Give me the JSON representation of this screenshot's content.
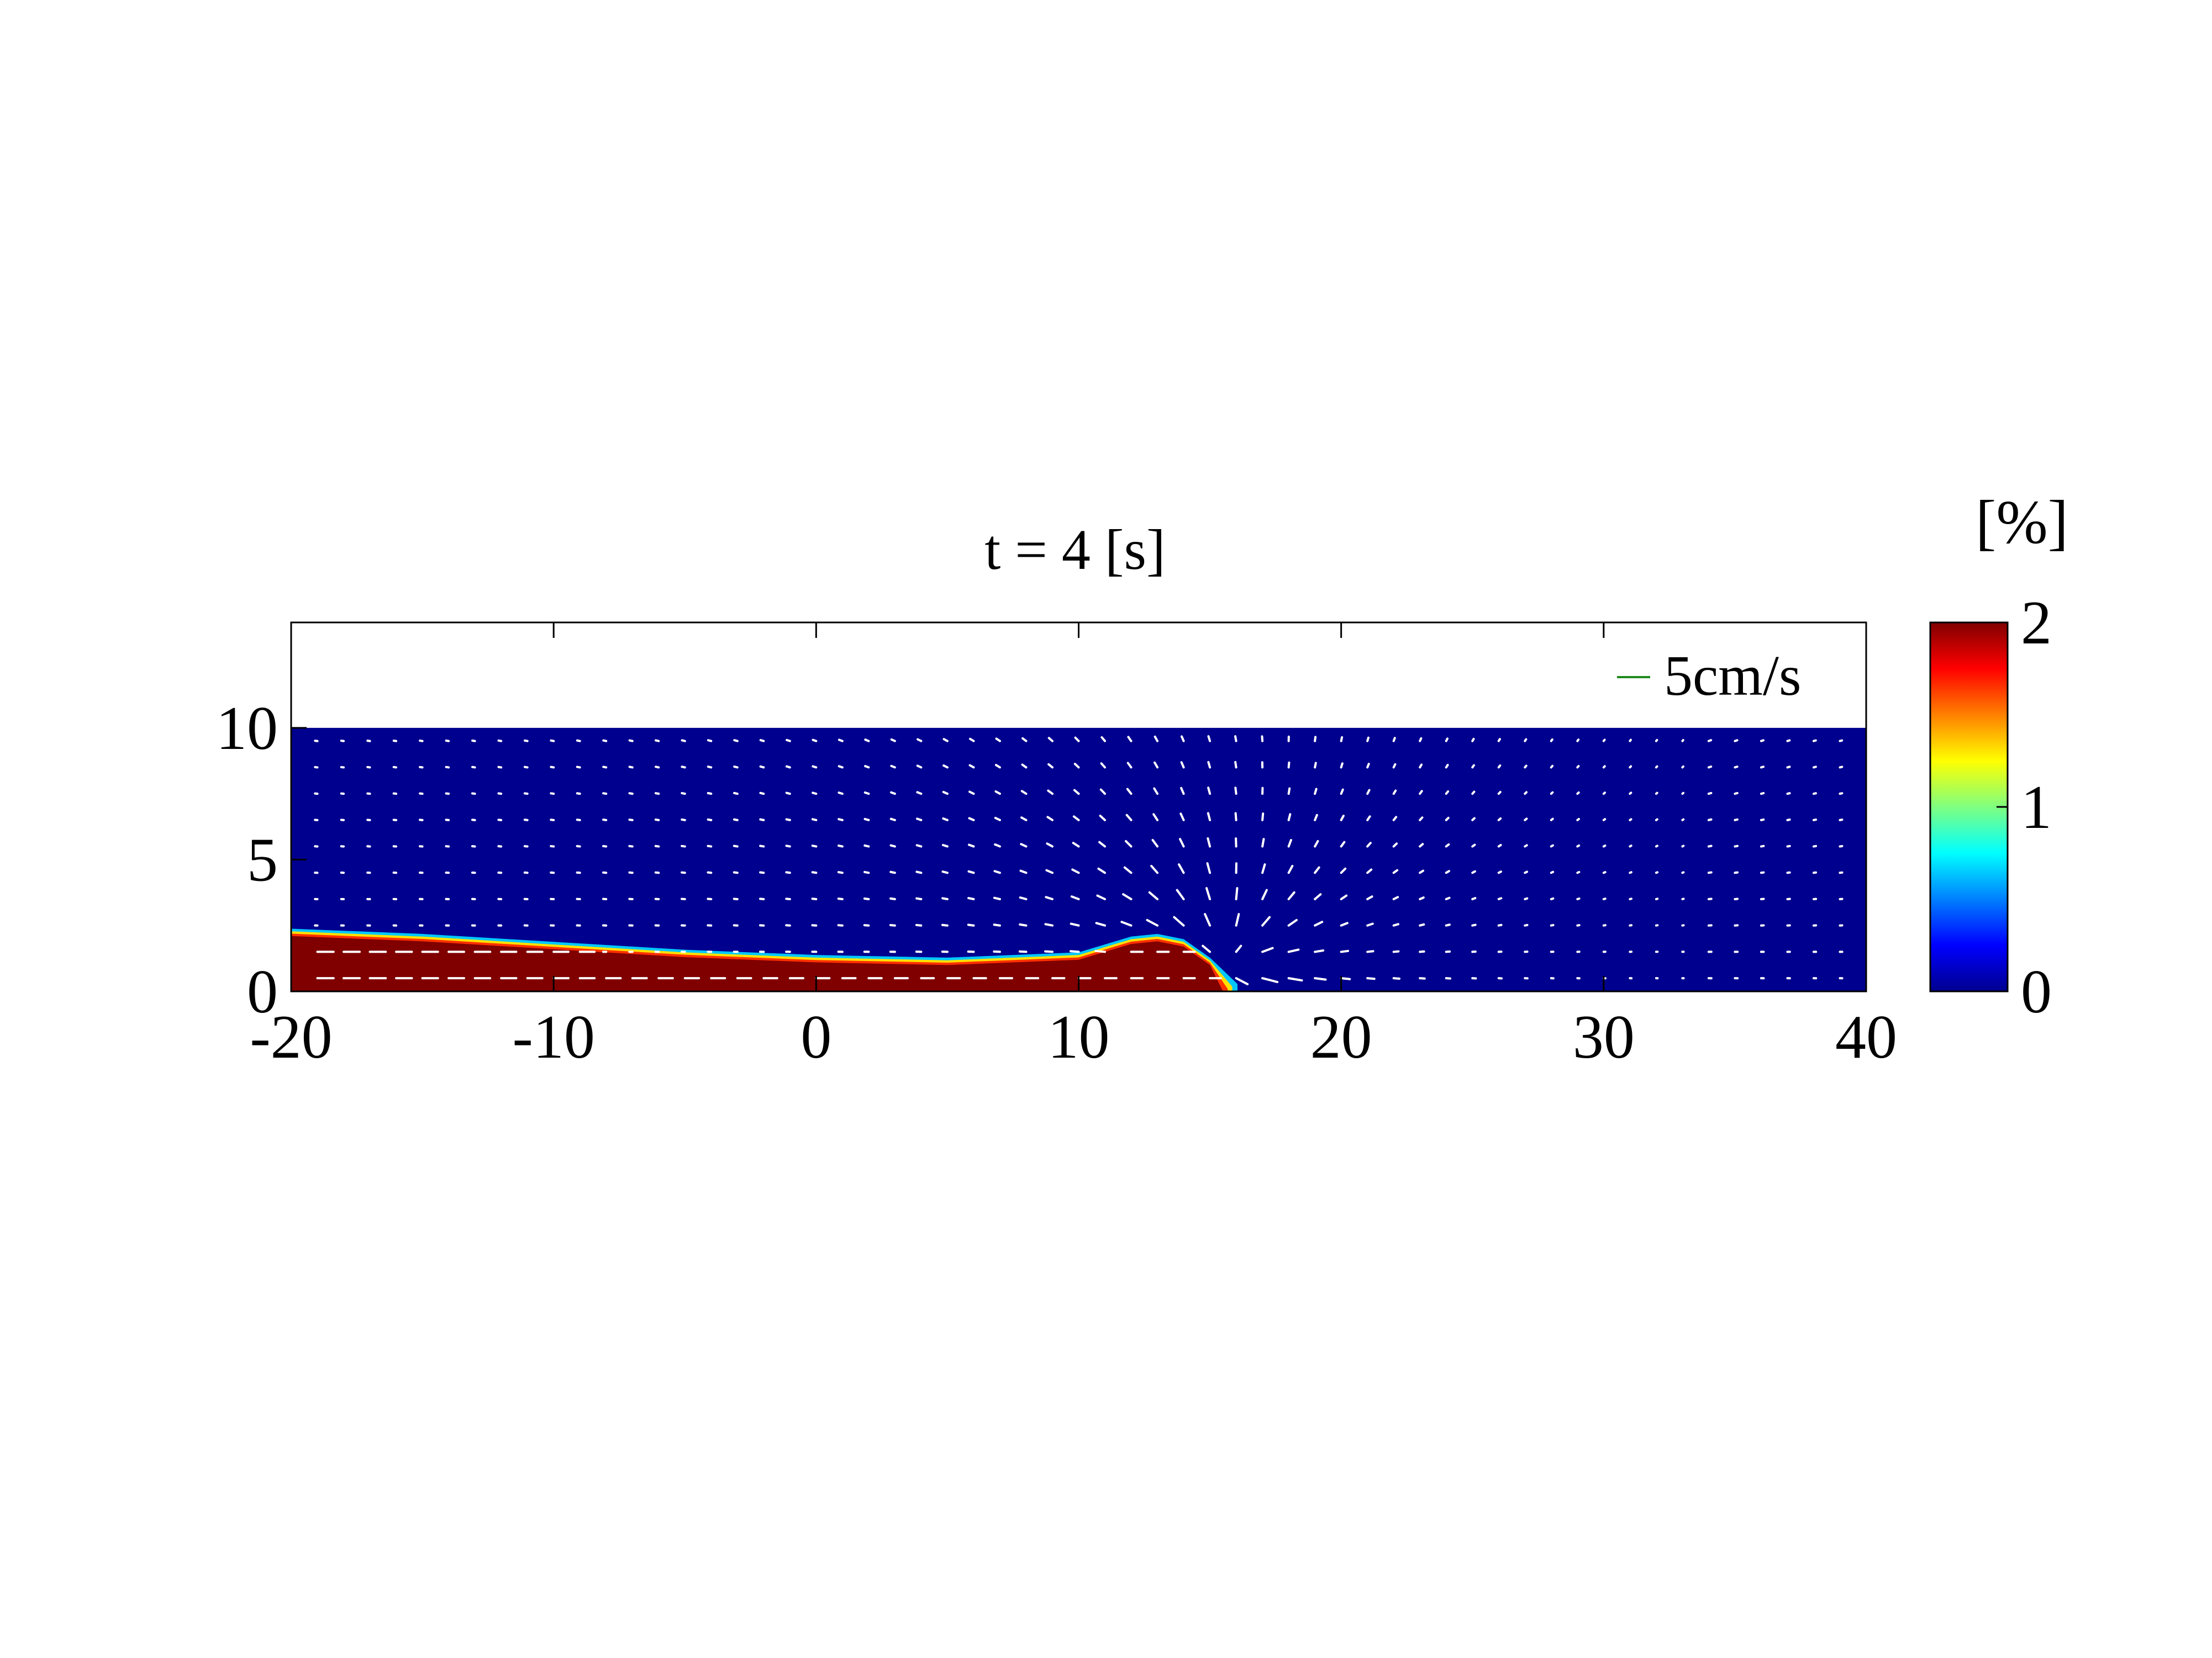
{
  "chart_data": {
    "type": "heatmap",
    "title": "t = 4 [s]",
    "xlabel": "",
    "ylabel": "",
    "xlim": [
      -20,
      40
    ],
    "ylim": [
      0,
      14
    ],
    "x_ticks": [
      -20,
      -10,
      0,
      10,
      20,
      30,
      40
    ],
    "y_ticks": [
      0,
      5,
      10
    ],
    "x_tick_labels": [
      "-20",
      "-10",
      "0",
      "10",
      "20",
      "30",
      "40"
    ],
    "y_tick_labels": [
      "0",
      "5",
      "10"
    ],
    "water_depth": 10,
    "colormap": "jet",
    "colorbar": {
      "label": "[%]",
      "range": [
        0,
        2
      ],
      "ticks": [
        0,
        1,
        2
      ],
      "tick_labels": [
        "0",
        "1",
        "2"
      ],
      "placement": "right"
    },
    "current_profile": {
      "description_units": "x vs interface height",
      "x": [
        -20,
        -15,
        -10,
        -5,
        0,
        5,
        10,
        12,
        13,
        14,
        15,
        15.5
      ],
      "height": [
        2.1,
        1.9,
        1.6,
        1.3,
        1.1,
        1.0,
        1.2,
        1.8,
        1.9,
        1.7,
        1.0,
        0
      ],
      "concentration_inside": 2.0,
      "concentration_outside": 0
    },
    "velocity_reference": {
      "label": "5cm/s",
      "color": "#1f8a1f",
      "placement": "top-right"
    },
    "quiver": {
      "color": "#ffffff",
      "head_x": 15.5
    },
    "grid": false
  }
}
